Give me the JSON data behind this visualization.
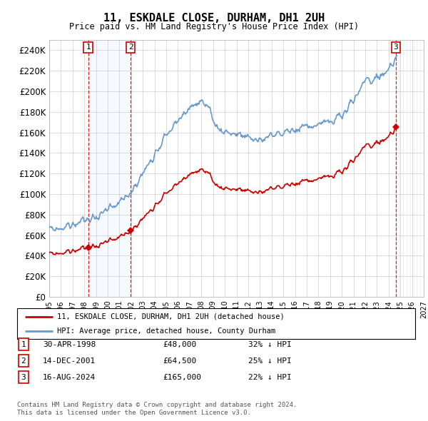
{
  "title": "11, ESKDALE CLOSE, DURHAM, DH1 2UH",
  "subtitle": "Price paid vs. HM Land Registry's House Price Index (HPI)",
  "ylim": [
    0,
    250000
  ],
  "yticks": [
    0,
    20000,
    40000,
    60000,
    80000,
    100000,
    120000,
    140000,
    160000,
    180000,
    200000,
    220000,
    240000
  ],
  "x_start_year": 1995,
  "x_end_year": 2027,
  "legend_line1": "11, ESKDALE CLOSE, DURHAM, DH1 2UH (detached house)",
  "legend_line2": "HPI: Average price, detached house, County Durham",
  "transactions": [
    {
      "num": 1,
      "date": "30-APR-1998",
      "price": 48000,
      "hpi_diff": "32% ↓ HPI",
      "year": 1998.33
    },
    {
      "num": 2,
      "date": "14-DEC-2001",
      "price": 64500,
      "hpi_diff": "25% ↓ HPI",
      "year": 2001.95
    },
    {
      "num": 3,
      "date": "16-AUG-2024",
      "price": 165000,
      "hpi_diff": "22% ↓ HPI",
      "year": 2024.62
    }
  ],
  "footer_line1": "Contains HM Land Registry data © Crown copyright and database right 2024.",
  "footer_line2": "This data is licensed under the Open Government Licence v3.0.",
  "hpi_color": "#6699cc",
  "price_color": "#cc0000",
  "shade_color": "#ddeeff",
  "background_color": "#ffffff",
  "grid_color": "#cccccc"
}
